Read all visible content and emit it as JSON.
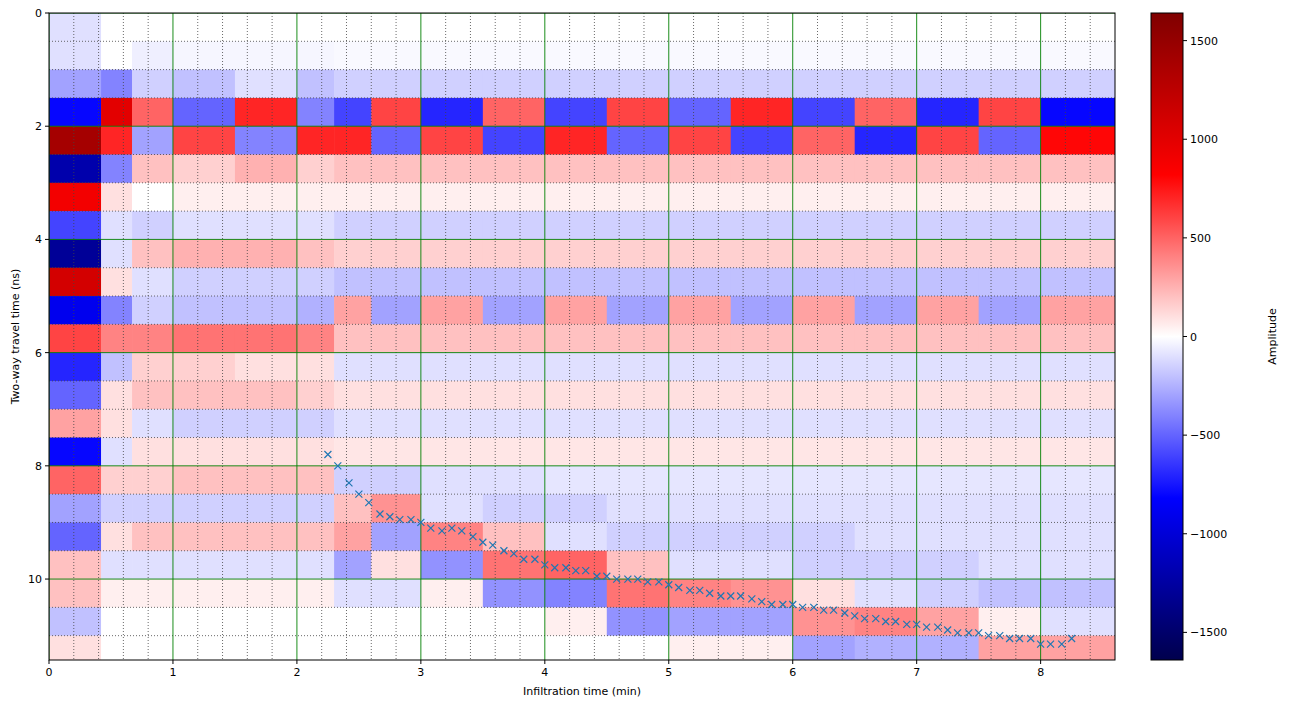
{
  "chart_data": {
    "type": "heatmap",
    "x_label": "Infiltration time (min)",
    "y_label": "Two-way travel time (ns)",
    "xlim": [
      0,
      8.6
    ],
    "ylim": [
      0,
      11.43
    ],
    "xticks": [
      0,
      1,
      2,
      3,
      4,
      5,
      6,
      7,
      8
    ],
    "yticks": [
      0,
      2,
      4,
      6,
      8,
      10
    ],
    "grid": true,
    "heatmap": {
      "x_edges": [
        0,
        0.42,
        0.67,
        1,
        1.5,
        2,
        2.3,
        2.6,
        3,
        3.5,
        4,
        4.5,
        5,
        5.5,
        6,
        6.5,
        7,
        7.5,
        8,
        8.6
      ],
      "y_edges": [
        0,
        0.5,
        1,
        1.5,
        2,
        2.5,
        3,
        3.5,
        4,
        4.5,
        5,
        5.5,
        6,
        6.5,
        7,
        7.5,
        8,
        8.5,
        9,
        9.5,
        10,
        10.5,
        11,
        11.43
      ],
      "values": [
        [
          -100,
          -100,
          -300,
          -800,
          1400,
          -1200,
          900,
          -600,
          -1300,
          1100,
          -900,
          600,
          -700,
          -500,
          300,
          -800,
          500,
          -300,
          -500,
          200,
          200,
          -200,
          100
        ],
        [
          0,
          0,
          -400,
          1000,
          700,
          -400,
          100,
          -100,
          -100,
          100,
          -400,
          400,
          -200,
          100,
          100,
          -100,
          150,
          -150,
          100,
          -100,
          50,
          0,
          0
        ],
        [
          0,
          -50,
          -150,
          500,
          -300,
          200,
          0,
          -150,
          200,
          -100,
          -150,
          400,
          150,
          200,
          -100,
          100,
          150,
          -150,
          200,
          -100,
          50,
          0,
          0
        ],
        [
          0,
          -30,
          -200,
          -500,
          600,
          150,
          50,
          -100,
          250,
          -150,
          -200,
          450,
          150,
          200,
          -150,
          100,
          200,
          -150,
          200,
          -100,
          50,
          0,
          0
        ],
        [
          0,
          -30,
          -100,
          700,
          -400,
          250,
          50,
          -100,
          250,
          -150,
          -200,
          450,
          100,
          200,
          -150,
          100,
          200,
          -150,
          200,
          -100,
          50,
          0,
          0
        ],
        [
          0,
          -30,
          -200,
          -400,
          700,
          150,
          50,
          -100,
          200,
          -150,
          -250,
          400,
          100,
          150,
          -150,
          100,
          200,
          -150,
          200,
          -100,
          50,
          0,
          0
        ],
        [
          0,
          -20,
          -150,
          -600,
          700,
          200,
          50,
          -150,
          150,
          -200,
          300,
          200,
          -100,
          100,
          -100,
          80,
          -150,
          200,
          300,
          -300,
          -100,
          0,
          0
        ],
        [
          0,
          -20,
          -150,
          600,
          -500,
          200,
          50,
          -150,
          150,
          -200,
          -300,
          200,
          -100,
          100,
          -100,
          80,
          -150,
          350,
          -300,
          100,
          -100,
          0,
          0
        ],
        [
          0,
          -20,
          -150,
          -700,
          600,
          200,
          50,
          -150,
          150,
          -200,
          300,
          200,
          -100,
          100,
          -100,
          80,
          -100,
          -100,
          400,
          -350,
          50,
          0,
          0
        ],
        [
          0,
          -20,
          -150,
          500,
          -600,
          200,
          50,
          -150,
          150,
          -200,
          -300,
          200,
          -100,
          100,
          -100,
          80,
          -100,
          -150,
          200,
          450,
          -350,
          0,
          0
        ],
        [
          0,
          -20,
          -150,
          -600,
          700,
          200,
          50,
          -150,
          150,
          -200,
          300,
          200,
          -100,
          100,
          -100,
          80,
          -80,
          -150,
          -100,
          500,
          -400,
          50,
          0
        ],
        [
          0,
          -20,
          -150,
          600,
          -500,
          200,
          50,
          -150,
          150,
          -200,
          -300,
          200,
          -100,
          100,
          -100,
          80,
          -80,
          -100,
          -150,
          200,
          450,
          -350,
          0
        ],
        [
          0,
          -20,
          -150,
          -500,
          600,
          200,
          50,
          -150,
          150,
          -200,
          300,
          200,
          -100,
          100,
          -100,
          80,
          -80,
          -100,
          -150,
          -100,
          400,
          -300,
          50
        ],
        [
          0,
          -20,
          -150,
          700,
          -600,
          200,
          50,
          -150,
          150,
          -200,
          -300,
          200,
          -100,
          100,
          -100,
          80,
          -80,
          -100,
          -150,
          -100,
          350,
          -300,
          50
        ],
        [
          0,
          -20,
          -150,
          -600,
          500,
          200,
          50,
          -150,
          150,
          -200,
          300,
          200,
          -100,
          100,
          -100,
          80,
          -80,
          -100,
          -150,
          -150,
          100,
          350,
          -300
        ],
        [
          0,
          -20,
          -150,
          500,
          -700,
          200,
          50,
          -150,
          150,
          -200,
          -300,
          200,
          -100,
          100,
          -100,
          80,
          -80,
          -100,
          -100,
          -150,
          -100,
          400,
          -250
        ],
        [
          0,
          -20,
          -150,
          -700,
          600,
          200,
          50,
          -150,
          150,
          -200,
          300,
          200,
          -100,
          100,
          -100,
          80,
          -80,
          -100,
          -100,
          -150,
          -150,
          300,
          -250
        ],
        [
          0,
          -20,
          -150,
          600,
          -500,
          200,
          50,
          -150,
          150,
          -200,
          -300,
          200,
          -100,
          100,
          -100,
          80,
          -80,
          -100,
          -100,
          -100,
          -200,
          50,
          300
        ],
        [
          0,
          -20,
          -150,
          -800,
          800,
          200,
          50,
          -150,
          150,
          -200,
          300,
          200,
          -100,
          100,
          -100,
          80,
          -80,
          -100,
          -100,
          -100,
          -200,
          -100,
          300
        ]
      ]
    },
    "colorbar": {
      "label": "Amplitude",
      "range": [
        -1640,
        1640
      ],
      "ticks": [
        {
          "value": -1500,
          "label": "−1500"
        },
        {
          "value": -1000,
          "label": "−1000"
        },
        {
          "value": -500,
          "label": "−500"
        },
        0,
        500,
        1000,
        1500
      ]
    },
    "series": [
      {
        "type": "scatter",
        "marker": "x",
        "color": "#1f77b4",
        "x": [
          2.25,
          2.33,
          2.42,
          2.5,
          2.58,
          2.67,
          2.75,
          2.83,
          2.92,
          3.0,
          3.08,
          3.17,
          3.25,
          3.33,
          3.42,
          3.5,
          3.58,
          3.67,
          3.75,
          3.83,
          3.92,
          4.0,
          4.08,
          4.17,
          4.25,
          4.33,
          4.42,
          4.5,
          4.58,
          4.67,
          4.75,
          4.83,
          4.92,
          5.0,
          5.08,
          5.17,
          5.25,
          5.33,
          5.42,
          5.5,
          5.58,
          5.67,
          5.75,
          5.83,
          5.92,
          6.0,
          6.08,
          6.17,
          6.25,
          6.33,
          6.42,
          6.5,
          6.58,
          6.67,
          6.75,
          6.83,
          6.92,
          7.0,
          7.08,
          7.17,
          7.25,
          7.33,
          7.42,
          7.5,
          7.58,
          7.67,
          7.75,
          7.83,
          7.92,
          8.0,
          8.08,
          8.17,
          8.25
        ],
        "values": [
          7.8,
          8.0,
          8.3,
          8.5,
          8.65,
          8.85,
          8.9,
          8.95,
          8.95,
          9.0,
          9.1,
          9.15,
          9.1,
          9.15,
          9.25,
          9.35,
          9.4,
          9.5,
          9.55,
          9.65,
          9.65,
          9.75,
          9.8,
          9.8,
          9.85,
          9.85,
          9.95,
          9.95,
          10.0,
          10.0,
          10.0,
          10.05,
          10.05,
          10.1,
          10.15,
          10.2,
          10.2,
          10.25,
          10.3,
          10.3,
          10.3,
          10.35,
          10.4,
          10.45,
          10.45,
          10.45,
          10.5,
          10.5,
          10.55,
          10.55,
          10.6,
          10.65,
          10.7,
          10.7,
          10.75,
          10.75,
          10.8,
          10.8,
          10.85,
          10.85,
          10.9,
          10.95,
          10.95,
          10.95,
          11.0,
          11.0,
          11.05,
          11.05,
          11.05,
          11.15,
          11.15,
          11.15,
          11.05
        ]
      }
    ]
  }
}
